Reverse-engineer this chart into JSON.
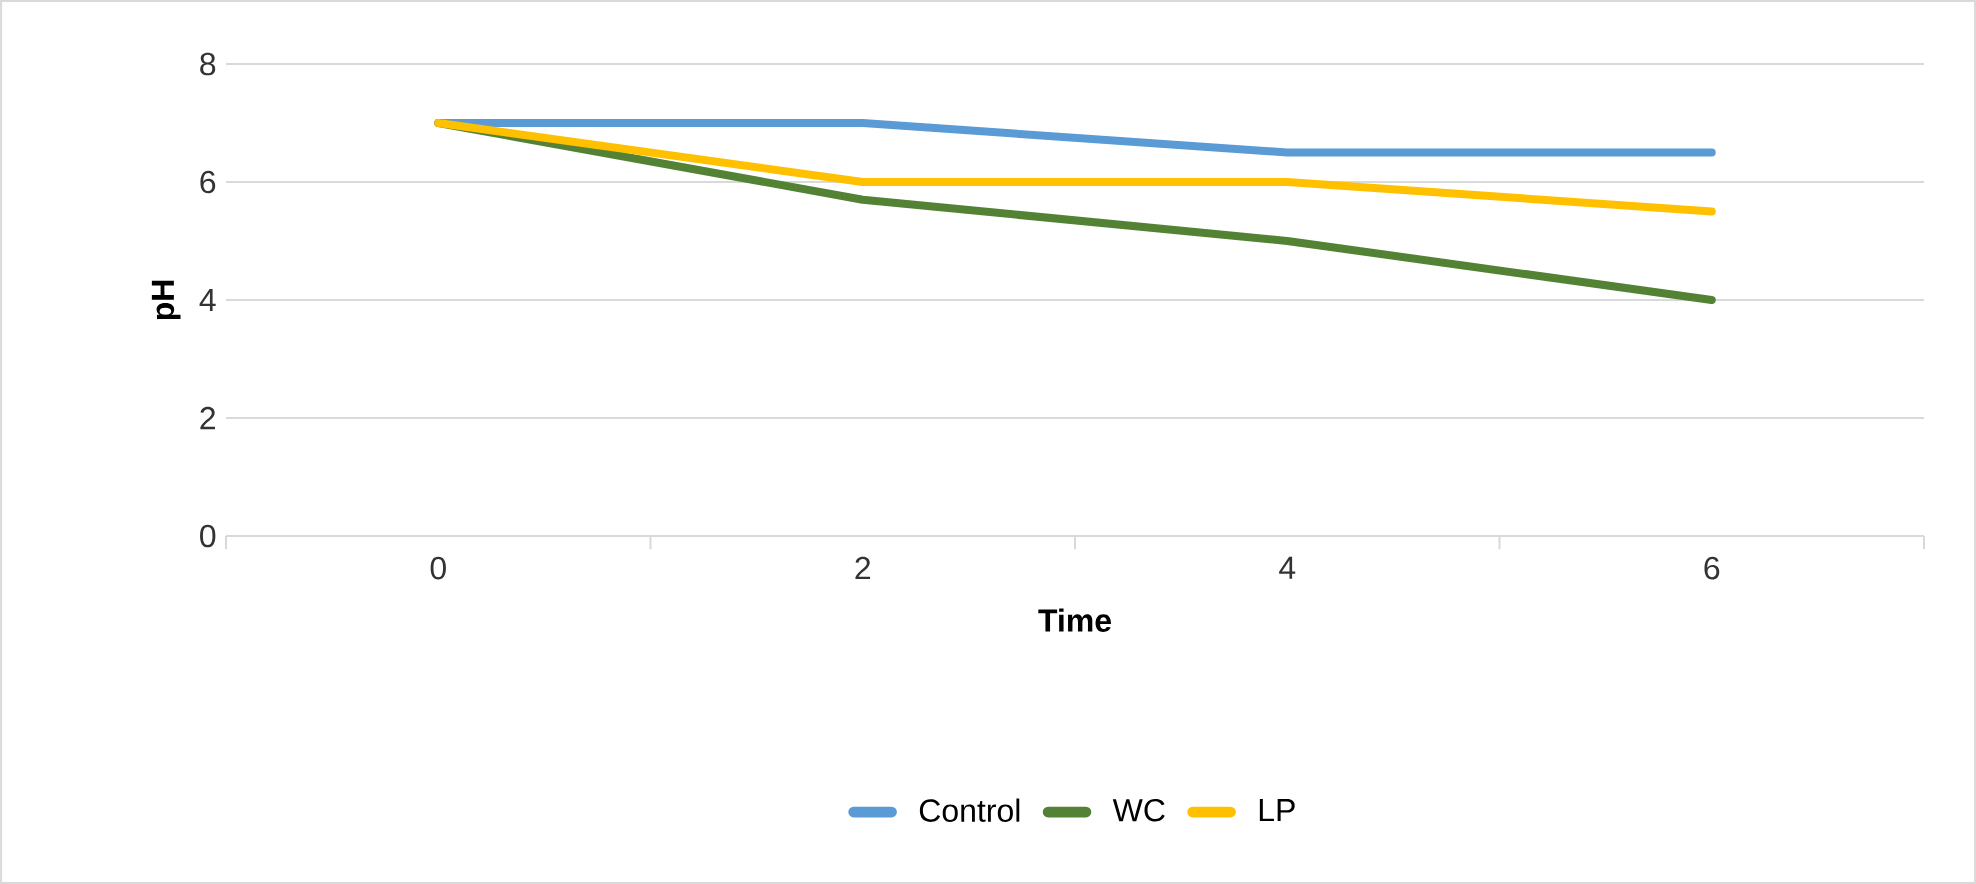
{
  "chart_data": {
    "type": "line",
    "xlabel": "Time",
    "ylabel": "pH",
    "categories": [
      "0",
      "2",
      "4",
      "6"
    ],
    "series": [
      {
        "name": "Control",
        "color": "#5b9bd5",
        "values": [
          7,
          7,
          6.5,
          6.5
        ]
      },
      {
        "name": "WC",
        "color": "#548235",
        "values": [
          7,
          5.7,
          5,
          4
        ]
      },
      {
        "name": "LP",
        "color": "#ffc000",
        "values": [
          7,
          6,
          6,
          5.5
        ]
      }
    ],
    "ylim": [
      0,
      8
    ],
    "yticks": [
      0,
      2,
      4,
      6,
      8
    ],
    "grid": "y",
    "legend": "bottom",
    "marker": "none",
    "line_style": "solid"
  }
}
